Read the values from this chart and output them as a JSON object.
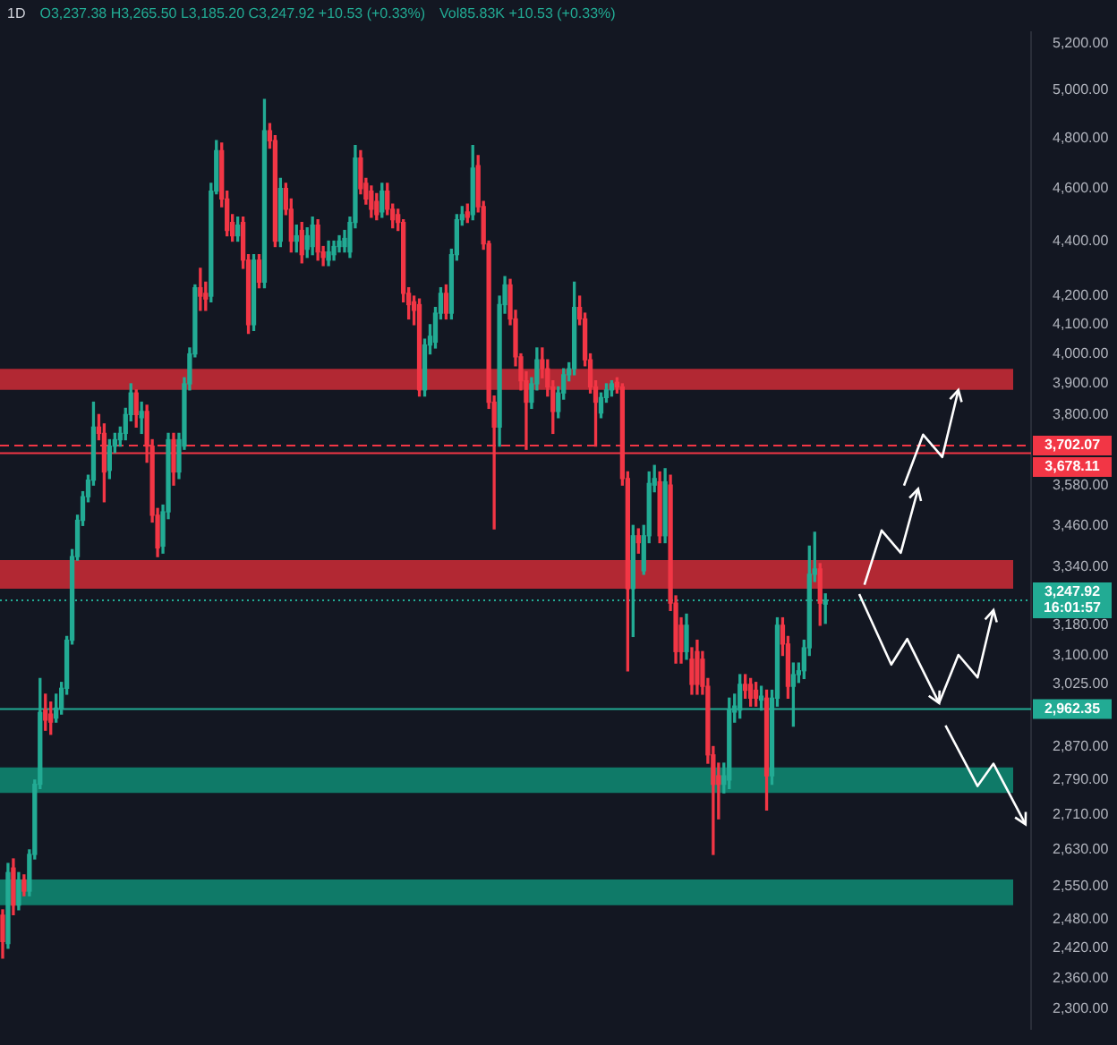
{
  "chart_data": {
    "type": "candlestick",
    "title": "1D",
    "annotations": [
      "O3,237.38 H3,265.50 L3,185.20 C3,247.92 +10.53 (+0.33%)",
      "Vol85.83K +10.53 (+0.33%)"
    ],
    "categories": [
      null,
      null,
      null,
      null,
      null,
      null,
      null,
      null,
      null,
      null,
      null,
      null,
      null,
      null,
      null,
      null,
      null,
      null,
      null,
      null,
      null,
      null,
      null,
      null,
      null,
      null,
      null,
      null,
      null,
      null,
      null,
      null,
      null,
      null,
      null,
      null,
      null,
      null,
      null,
      null,
      null,
      null,
      null,
      null,
      null,
      null,
      null,
      null,
      null,
      null,
      null,
      null,
      null,
      null,
      null,
      null,
      null,
      null,
      null,
      null,
      null,
      null,
      null,
      null,
      null,
      null,
      null,
      null,
      null,
      null,
      null,
      null,
      null,
      null,
      null,
      null,
      null,
      null,
      null,
      null,
      null,
      null,
      null,
      null,
      null,
      null,
      null,
      null,
      null,
      null,
      null,
      null,
      null,
      null,
      null,
      null,
      null,
      null,
      null,
      null,
      null,
      null,
      null,
      null,
      null,
      null,
      null,
      null,
      null,
      null,
      null,
      null,
      null,
      null,
      null,
      null,
      null,
      null,
      null,
      null,
      null,
      null,
      null,
      null,
      null,
      null,
      null,
      null,
      null,
      null,
      null,
      null,
      null,
      null,
      null,
      null,
      null,
      null,
      null,
      null,
      null,
      null,
      null,
      null,
      null,
      null,
      null,
      null,
      null,
      null,
      null,
      null,
      null,
      null,
      null,
      null,
      null,
      null,
      null,
      null,
      null,
      null,
      null,
      null,
      null,
      null,
      null,
      null,
      null,
      null,
      null,
      null,
      null,
      null,
      null,
      null,
      null,
      null,
      null,
      null,
      null,
      null,
      null,
      null,
      null,
      null,
      null,
      null,
      null,
      null,
      null,
      null,
      null
    ],
    "ohlc": [
      [
        2489,
        2500,
        2400,
        2434
      ],
      [
        2430,
        2600,
        2420,
        2580
      ],
      [
        2590,
        2610,
        2490,
        2510
      ],
      [
        2510,
        2580,
        2500,
        2564
      ],
      [
        2564,
        2575,
        2530,
        2540
      ],
      [
        2540,
        2630,
        2530,
        2620
      ],
      [
        2620,
        2790,
        2610,
        2780
      ],
      [
        2780,
        3040,
        2770,
        2954
      ],
      [
        2960,
        3000,
        2910,
        2935
      ],
      [
        2950,
        2980,
        2900,
        2930
      ],
      [
        2940,
        3000,
        2930,
        2965
      ],
      [
        2965,
        3030,
        2950,
        3015
      ],
      [
        3015,
        3150,
        3000,
        3140
      ],
      [
        3140,
        3390,
        3130,
        3370
      ],
      [
        3370,
        3490,
        3360,
        3475
      ],
      [
        3475,
        3560,
        3460,
        3545
      ],
      [
        3545,
        3610,
        3530,
        3595
      ],
      [
        3595,
        3840,
        3580,
        3760
      ],
      [
        3760,
        3800,
        3720,
        3740
      ],
      [
        3740,
        3770,
        3530,
        3620
      ],
      [
        3625,
        3720,
        3600,
        3700
      ],
      [
        3700,
        3740,
        3680,
        3720
      ],
      [
        3720,
        3760,
        3700,
        3740
      ],
      [
        3740,
        3820,
        3720,
        3800
      ],
      [
        3800,
        3900,
        3780,
        3870
      ],
      [
        3870,
        3880,
        3760,
        3800
      ],
      [
        3790,
        3840,
        3740,
        3810
      ],
      [
        3810,
        3830,
        3650,
        3700
      ],
      [
        3700,
        3720,
        3470,
        3490
      ],
      [
        3490,
        3510,
        3370,
        3395
      ],
      [
        3400,
        3520,
        3380,
        3500
      ],
      [
        3500,
        3740,
        3480,
        3720
      ],
      [
        3720,
        3740,
        3580,
        3620
      ],
      [
        3620,
        3740,
        3600,
        3720
      ],
      [
        3700,
        3920,
        3690,
        3900
      ],
      [
        3900,
        4020,
        3880,
        4000
      ],
      [
        4000,
        4240,
        3990,
        4230
      ],
      [
        4230,
        4300,
        4150,
        4200
      ],
      [
        4210,
        4250,
        4150,
        4190
      ],
      [
        4200,
        4620,
        4180,
        4590
      ],
      [
        4590,
        4790,
        4580,
        4750
      ],
      [
        4750,
        4780,
        4530,
        4560
      ],
      [
        4560,
        4590,
        4420,
        4440
      ],
      [
        4470,
        4500,
        4400,
        4420
      ],
      [
        4420,
        4490,
        4400,
        4460
      ],
      [
        4470,
        4490,
        4300,
        4330
      ],
      [
        4330,
        4350,
        4070,
        4100
      ],
      [
        4100,
        4350,
        4080,
        4330
      ],
      [
        4330,
        4350,
        4230,
        4250
      ],
      [
        4250,
        4960,
        4230,
        4830
      ],
      [
        4830,
        4860,
        4760,
        4790
      ],
      [
        4790,
        4810,
        4380,
        4400
      ],
      [
        4400,
        4640,
        4380,
        4600
      ],
      [
        4600,
        4620,
        4500,
        4520
      ],
      [
        4520,
        4560,
        4360,
        4400
      ],
      [
        4400,
        4460,
        4360,
        4420
      ],
      [
        4440,
        4470,
        4320,
        4350
      ],
      [
        4370,
        4450,
        4340,
        4420
      ],
      [
        4380,
        4490,
        4350,
        4460
      ],
      [
        4460,
        4480,
        4330,
        4360
      ],
      [
        4360,
        4380,
        4310,
        4340
      ],
      [
        4330,
        4400,
        4310,
        4360
      ],
      [
        4350,
        4400,
        4330,
        4380
      ],
      [
        4380,
        4420,
        4360,
        4400
      ],
      [
        4380,
        4440,
        4360,
        4410
      ],
      [
        4360,
        4490,
        4340,
        4470
      ],
      [
        4470,
        4770,
        4450,
        4720
      ],
      [
        4720,
        4750,
        4580,
        4600
      ],
      [
        4620,
        4640,
        4540,
        4560
      ],
      [
        4590,
        4610,
        4490,
        4520
      ],
      [
        4550,
        4580,
        4480,
        4500
      ],
      [
        4510,
        4620,
        4490,
        4590
      ],
      [
        4590,
        4620,
        4500,
        4520
      ],
      [
        4520,
        4540,
        4450,
        4480
      ],
      [
        4500,
        4520,
        4440,
        4470
      ],
      [
        4470,
        4480,
        4180,
        4210
      ],
      [
        4210,
        4230,
        4120,
        4170
      ],
      [
        4180,
        4200,
        4100,
        4150
      ],
      [
        4170,
        4190,
        3860,
        3880
      ],
      [
        3880,
        4050,
        3860,
        4030
      ],
      [
        4030,
        4100,
        4000,
        4060
      ],
      [
        4040,
        4160,
        4020,
        4140
      ],
      [
        4140,
        4230,
        4120,
        4210
      ],
      [
        4210,
        4240,
        4120,
        4140
      ],
      [
        4140,
        4370,
        4120,
        4350
      ],
      [
        4350,
        4500,
        4330,
        4480
      ],
      [
        4480,
        4530,
        4460,
        4500
      ],
      [
        4510,
        4540,
        4470,
        4490
      ],
      [
        4500,
        4770,
        4480,
        4680
      ],
      [
        4690,
        4730,
        4510,
        4530
      ],
      [
        4530,
        4550,
        4370,
        4390
      ],
      [
        4390,
        4400,
        3820,
        3840
      ],
      [
        3840,
        3860,
        3450,
        3760
      ],
      [
        3760,
        4200,
        3700,
        4170
      ],
      [
        4170,
        4270,
        4140,
        4240
      ],
      [
        4240,
        4260,
        4100,
        4120
      ],
      [
        4120,
        4150,
        3960,
        3990
      ],
      [
        3990,
        4000,
        3880,
        3910
      ],
      [
        3910,
        3940,
        3690,
        3840
      ],
      [
        3840,
        3920,
        3820,
        3900
      ],
      [
        3900,
        4020,
        3880,
        3980
      ],
      [
        3980,
        4020,
        3920,
        3950
      ],
      [
        3950,
        3980,
        3860,
        3890
      ],
      [
        3890,
        3910,
        3740,
        3810
      ],
      [
        3810,
        3890,
        3790,
        3870
      ],
      [
        3870,
        3950,
        3850,
        3930
      ],
      [
        3930,
        3970,
        3910,
        3950
      ],
      [
        3950,
        4250,
        3930,
        4160
      ],
      [
        4160,
        4200,
        4100,
        4120
      ],
      [
        4120,
        4140,
        3960,
        3980
      ],
      [
        3980,
        4000,
        3870,
        3890
      ],
      [
        3890,
        3910,
        3700,
        3840
      ],
      [
        3805,
        3870,
        3790,
        3855
      ],
      [
        3855,
        3900,
        3840,
        3880
      ],
      [
        3880,
        3910,
        3860,
        3900
      ],
      [
        3905,
        3920,
        3870,
        3890
      ],
      [
        3890,
        3900,
        3580,
        3600
      ],
      [
        3600,
        3620,
        3060,
        3280
      ],
      [
        3280,
        3460,
        3150,
        3430
      ],
      [
        3430,
        3450,
        3380,
        3410
      ],
      [
        3330,
        3460,
        3320,
        3430
      ],
      [
        3430,
        3620,
        3410,
        3585
      ],
      [
        3580,
        3640,
        3560,
        3600
      ],
      [
        3590,
        3620,
        3410,
        3430
      ],
      [
        3430,
        3630,
        3410,
        3590
      ],
      [
        3580,
        3610,
        3220,
        3240
      ],
      [
        3240,
        3260,
        3080,
        3110
      ],
      [
        3180,
        3200,
        3080,
        3110
      ],
      [
        3110,
        3210,
        3090,
        3180
      ],
      [
        3090,
        3120,
        3000,
        3025
      ],
      [
        3110,
        3140,
        3000,
        3025
      ],
      [
        3090,
        3110,
        3000,
        3020
      ],
      [
        3020,
        3040,
        2830,
        2850
      ],
      [
        2850,
        2870,
        2620,
        2780
      ],
      [
        2800,
        2830,
        2700,
        2780
      ],
      [
        2780,
        2830,
        2760,
        2800
      ],
      [
        2790,
        2990,
        2770,
        2960
      ],
      [
        2955,
        3000,
        2930,
        2970
      ],
      [
        2960,
        3050,
        2940,
        3025
      ],
      [
        3025,
        3050,
        2990,
        3010
      ],
      [
        3025,
        3040,
        2970,
        2990
      ],
      [
        3010,
        3030,
        2970,
        2990
      ],
      [
        2985,
        3020,
        2960,
        2995
      ],
      [
        2990,
        3010,
        2720,
        2800
      ],
      [
        2800,
        3010,
        2780,
        2990
      ],
      [
        2990,
        3200,
        2970,
        3180
      ],
      [
        3180,
        3200,
        3100,
        3130
      ],
      [
        3130,
        3150,
        2990,
        3020
      ],
      [
        3020,
        3080,
        2920,
        3050
      ],
      [
        3050,
        3080,
        3030,
        3060
      ],
      [
        3060,
        3140,
        3040,
        3120
      ],
      [
        3120,
        3400,
        3100,
        3320
      ],
      [
        3320,
        3440,
        3300,
        3335
      ],
      [
        3335,
        3350,
        3180,
        3240
      ],
      [
        3237.38,
        3265.5,
        3185.2,
        3247.92
      ],
      null,
      null,
      null,
      null,
      null,
      null,
      null,
      null,
      null,
      null,
      null,
      null,
      null,
      null,
      null,
      null,
      null,
      null,
      null,
      null,
      null,
      null,
      null,
      null,
      null,
      null,
      null,
      null,
      null,
      null,
      null,
      null,
      null,
      null,
      null,
      null,
      null,
      null
    ],
    "log": true,
    "ylim": [
      2260,
      5250
    ],
    "yticks": [
      {
        "value": 5200,
        "label": "5,200.00"
      },
      {
        "value": 5000,
        "label": "5,000.00"
      },
      {
        "value": 4800,
        "label": "4,800.00"
      },
      {
        "value": 4600,
        "label": "4,600.00"
      },
      {
        "value": 4400,
        "label": "4,400.00"
      },
      {
        "value": 4200,
        "label": "4,200.00"
      },
      {
        "value": 4100,
        "label": "4,100.00"
      },
      {
        "value": 4000,
        "label": "4,000.00"
      },
      {
        "value": 3900,
        "label": "3,900.00"
      },
      {
        "value": 3800,
        "label": "3,800.00"
      },
      {
        "value": 3580,
        "label": "3,580.00"
      },
      {
        "value": 3460,
        "label": "3,460.00"
      },
      {
        "value": 3340,
        "label": "3,340.00"
      },
      {
        "value": 3180,
        "label": "3,180.00"
      },
      {
        "value": 3100,
        "label": "3,100.00"
      },
      {
        "value": 3025,
        "label": "3,025.00"
      },
      {
        "value": 2870,
        "label": "2,870.00"
      },
      {
        "value": 2790,
        "label": "2,790.00"
      },
      {
        "value": 2710,
        "label": "2,710.00"
      },
      {
        "value": 2630,
        "label": "2,630.00"
      },
      {
        "value": 2550,
        "label": "2,550.00"
      },
      {
        "value": 2480,
        "label": "2,480.00"
      },
      {
        "value": 2420,
        "label": "2,420.00"
      },
      {
        "value": 2360,
        "label": "2,360.00"
      },
      {
        "value": 2300,
        "label": "2,300.00"
      }
    ],
    "tick_labels": "y",
    "bands": [
      {
        "axis": "y",
        "from": 3880,
        "to": 3950,
        "color": "#b22833"
      },
      {
        "axis": "y",
        "from": 3280,
        "to": 3360,
        "color": "#b22833"
      },
      {
        "axis": "y",
        "from": 2760,
        "to": 2820,
        "color": "#0f7a68"
      },
      {
        "axis": "y",
        "from": 2510,
        "to": 2565,
        "color": "#0f7a68"
      }
    ],
    "ref_lines": [
      {
        "axis": "y",
        "value": 3702.07,
        "label": "3,702.07",
        "color": "#f23645",
        "line_style": "dashed"
      },
      {
        "axis": "y",
        "value": 3678.11,
        "label": "3,678.11",
        "color": "#f23645",
        "line_style": "solid"
      },
      {
        "axis": "y",
        "value": 3247.92,
        "label": "3,247.92\n16:01:57",
        "color": "#22ab94",
        "line_style": "dotted"
      },
      {
        "axis": "y",
        "value": 2962.35,
        "label": "2,962.35",
        "color": "#22ab94",
        "line_style": "solid"
      }
    ]
  }
}
